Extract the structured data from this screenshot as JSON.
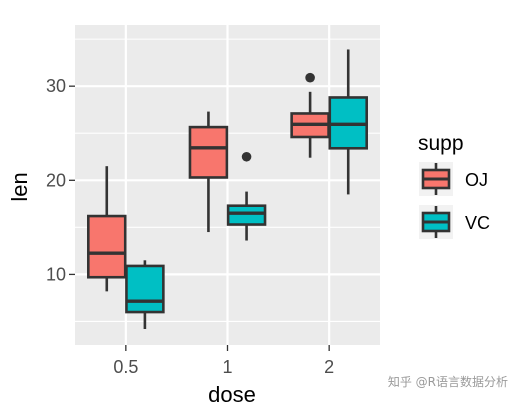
{
  "chart_data": {
    "type": "boxplot",
    "xlabel": "dose",
    "ylabel": "len",
    "categories": [
      "0.5",
      "1",
      "2"
    ],
    "ylim": [
      2.5,
      36.5
    ],
    "yticks": [
      10,
      20,
      30
    ],
    "grid": true,
    "legend": {
      "title": "supp",
      "position": "right"
    },
    "series": [
      {
        "name": "OJ",
        "color": "#F8766D",
        "boxes": [
          {
            "dose": "0.5",
            "min": 8.2,
            "q1": 9.7,
            "median": 12.25,
            "q3": 16.2,
            "max": 21.5,
            "outliers": []
          },
          {
            "dose": "1",
            "min": 14.5,
            "q1": 20.3,
            "median": 23.45,
            "q3": 25.65,
            "max": 27.3,
            "outliers": []
          },
          {
            "dose": "2",
            "min": 22.4,
            "q1": 24.6,
            "median": 25.95,
            "q3": 27.1,
            "max": 29.4,
            "outliers": [
              30.9
            ]
          }
        ]
      },
      {
        "name": "VC",
        "color": "#00BFC4",
        "boxes": [
          {
            "dose": "0.5",
            "min": 4.2,
            "q1": 6.0,
            "median": 7.15,
            "q3": 10.9,
            "max": 11.5,
            "outliers": []
          },
          {
            "dose": "1",
            "min": 13.6,
            "q1": 15.3,
            "median": 16.5,
            "q3": 17.3,
            "max": 18.8,
            "outliers": [
              22.5
            ]
          },
          {
            "dose": "2",
            "min": 18.5,
            "q1": 23.4,
            "median": 25.95,
            "q3": 28.8,
            "max": 33.9,
            "outliers": []
          }
        ]
      }
    ]
  },
  "watermark": "知乎 @R语言数据分析"
}
